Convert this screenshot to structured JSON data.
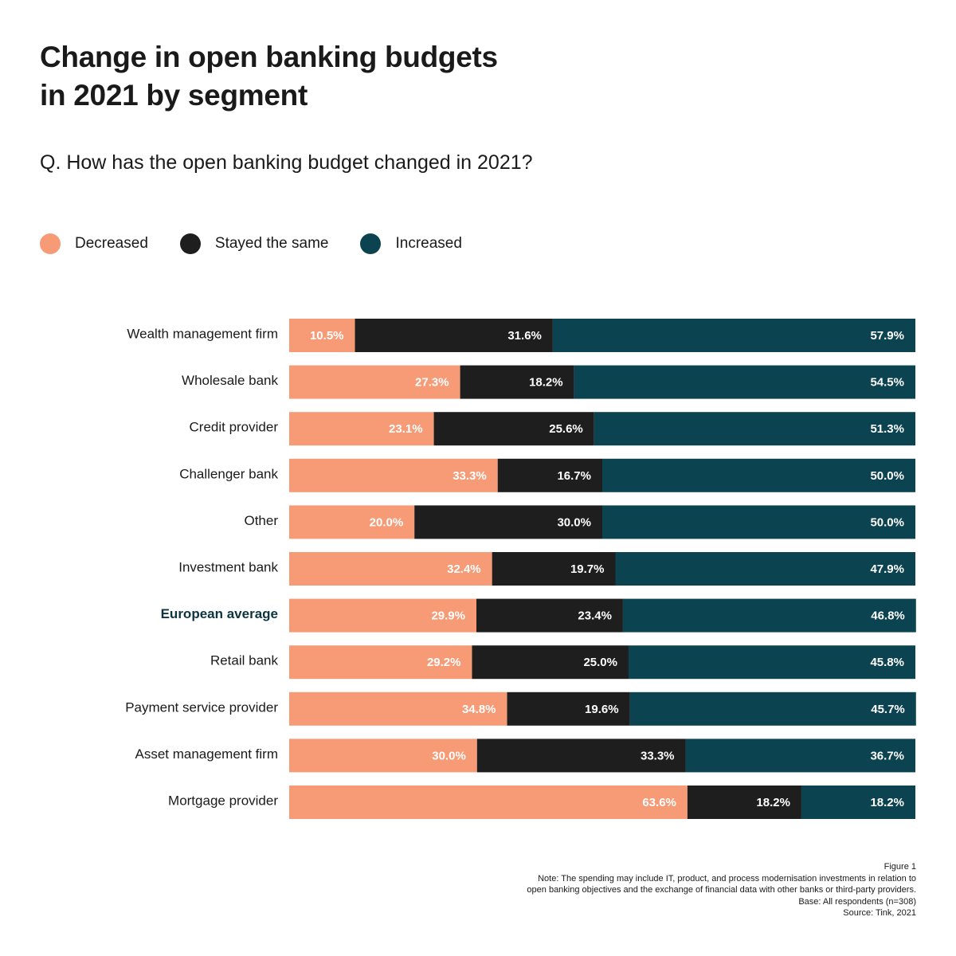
{
  "title": {
    "line1": "Change in open banking budgets",
    "line2": "in 2021 by segment"
  },
  "question": "Q. How has the open banking budget changed in 2021?",
  "legend": [
    {
      "label": "Decreased",
      "color": "#f79a76"
    },
    {
      "label": "Stayed the same",
      "color": "#1e1e1e"
    },
    {
      "label": "Increased",
      "color": "#0b4350"
    }
  ],
  "chart_data": {
    "type": "bar",
    "orientation": "horizontal",
    "stacked": true,
    "normalized_to": 100,
    "unit": "%",
    "categories": [
      "Wealth management firm",
      "Wholesale bank",
      "Credit provider",
      "Challenger bank",
      "Other",
      "Investment bank",
      "European average",
      "Retail bank",
      "Payment service provider",
      "Asset management firm",
      "Mortgage provider"
    ],
    "highlight_category": "European average",
    "series": [
      {
        "name": "Decreased",
        "color": "#f79a76",
        "label_color": "#ffffff",
        "values": [
          10.5,
          27.3,
          23.1,
          33.3,
          20.0,
          32.4,
          29.9,
          29.2,
          34.8,
          30.0,
          63.6
        ]
      },
      {
        "name": "Stayed the same",
        "color": "#1e1e1e",
        "label_color": "#ffffff",
        "values": [
          31.6,
          18.2,
          25.6,
          16.7,
          30.0,
          19.7,
          23.4,
          25.0,
          19.6,
          33.3,
          18.2
        ]
      },
      {
        "name": "Increased",
        "color": "#0b4350",
        "label_color": "#ffffff",
        "values": [
          57.9,
          54.5,
          51.3,
          50.0,
          50.0,
          47.9,
          46.8,
          45.8,
          45.7,
          36.7,
          18.2
        ]
      }
    ],
    "title": "Change in open banking budgets in 2021 by segment",
    "xlabel": "",
    "ylabel": "",
    "xlim": [
      0,
      100
    ],
    "grid": false,
    "legend_position": "top-left"
  },
  "notes": {
    "figure": "Figure 1",
    "note_line1": "Note: The spending may include IT, product, and process modernisation investments in relation to",
    "note_line2": "open banking objectives and the exchange of financial data with other banks or third-party providers.",
    "base": "Base: All respondents (n=308)",
    "source": "Source: Tink, 2021"
  }
}
